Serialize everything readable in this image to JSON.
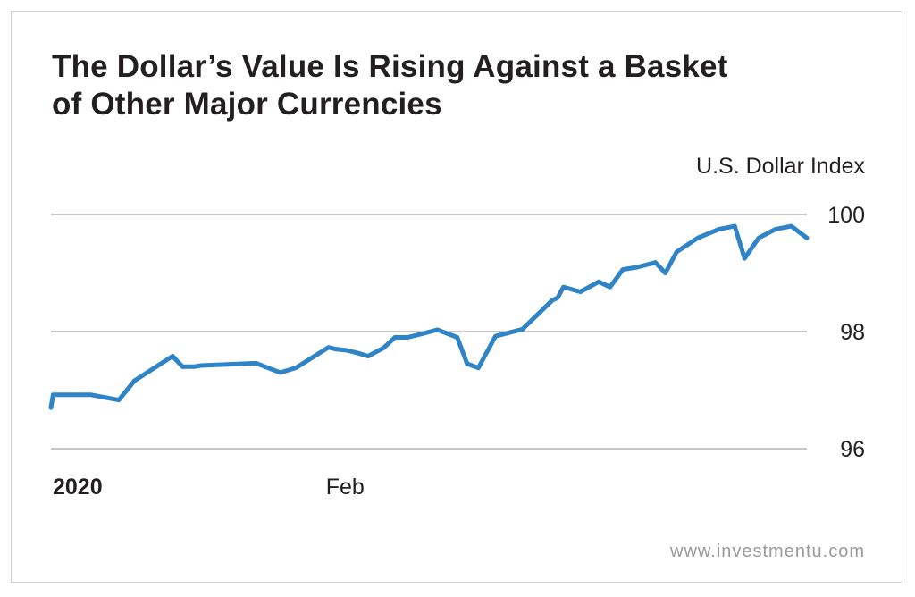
{
  "chart_data": {
    "type": "line",
    "title": [
      "The Dollar’s Value Is Rising Against a Basket",
      "of Other Major Currencies"
    ],
    "ylabel": "U.S. Dollar Index",
    "xlabel": "",
    "ylim": [
      96,
      100
    ],
    "yticks": [
      96,
      98,
      100
    ],
    "xticks": [
      {
        "label": "2020",
        "x": 0,
        "bold": true
      },
      {
        "label": "Feb",
        "x": 21,
        "bold": false
      }
    ],
    "grid": true,
    "color": "#2e84c6",
    "series": [
      {
        "x": [
          0,
          0.15,
          1.8,
          2.8,
          4.8,
          5.9,
          8.6,
          9.3,
          10.1,
          10.6,
          14.5,
          16.2,
          17.3,
          19.6,
          20.1,
          20.9,
          21.7,
          22.4,
          23.5,
          24.3,
          25.2,
          26.2,
          27.3,
          28.7,
          29.4,
          30.2,
          31.4,
          33.3,
          35.4,
          35.8,
          36.2,
          37.4,
          38.7,
          39.5,
          40.4,
          41.4,
          42.7,
          43.4,
          44.2,
          45.7,
          47.2,
          48.3,
          49.0,
          50.0,
          51.2,
          52.3,
          53.4
        ],
        "y": [
          96.7,
          96.92,
          96.92,
          96.92,
          96.83,
          97.16,
          97.58,
          97.4,
          97.4,
          97.42,
          97.46,
          97.3,
          97.38,
          97.73,
          97.7,
          97.68,
          97.63,
          97.58,
          97.72,
          97.9,
          97.9,
          97.96,
          98.03,
          97.9,
          97.45,
          97.38,
          97.92,
          98.04,
          98.53,
          98.58,
          98.76,
          98.68,
          98.85,
          98.76,
          99.06,
          99.1,
          99.18,
          99.0,
          99.36,
          99.6,
          99.75,
          99.8,
          99.25,
          99.6,
          99.75,
          99.8,
          99.6
        ]
      }
    ]
  },
  "watermark": "www.investmentu.com"
}
